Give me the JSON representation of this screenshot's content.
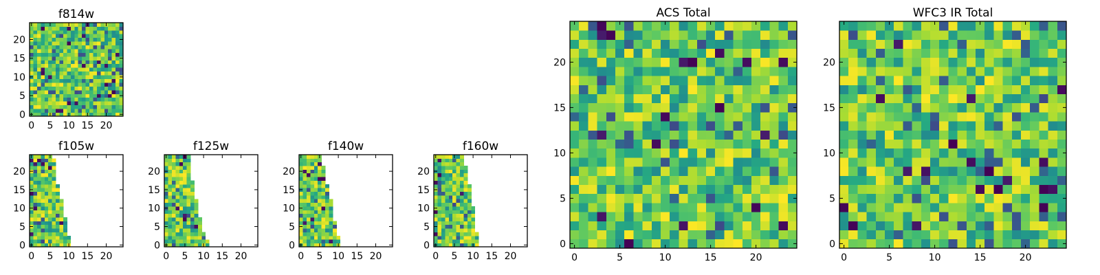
{
  "figure": {
    "colormap": "viridis",
    "colormap_stops": [
      "#440154",
      "#3b528b",
      "#21918c",
      "#5ec962",
      "#fde725"
    ]
  },
  "chart_data": [
    {
      "type": "heatmap",
      "title": "f814w",
      "grid_size": [
        25,
        25
      ],
      "value_range": [
        0,
        1
      ],
      "filled_columns_per_row": null,
      "xlim": [
        0,
        25
      ],
      "ylim": [
        0,
        25
      ],
      "x_ticks": [
        0,
        5,
        10,
        15,
        20
      ],
      "y_ticks": [
        0,
        5,
        10,
        15,
        20
      ],
      "value_distribution": "noise, mostly 0.5-1.0 (green-yellow), sparse dark pixels"
    },
    {
      "type": "heatmap",
      "title": "f105w",
      "grid_size": [
        25,
        25
      ],
      "value_range": [
        0,
        1
      ],
      "filled_columns_per_row": [
        11,
        11,
        11,
        10,
        10,
        10,
        10,
        10,
        9,
        9,
        9,
        9,
        9,
        8,
        8,
        8,
        8,
        7,
        7,
        7,
        7,
        7,
        7,
        7,
        6
      ],
      "xlim": [
        0,
        25
      ],
      "ylim": [
        0,
        25
      ],
      "x_ticks": [
        0,
        5,
        10,
        15,
        20
      ],
      "y_ticks": [
        0,
        5,
        10,
        15,
        20
      ]
    },
    {
      "type": "heatmap",
      "title": "f125w",
      "grid_size": [
        25,
        25
      ],
      "value_range": [
        0,
        1
      ],
      "filled_columns_per_row": [
        12,
        12,
        11,
        11,
        10,
        10,
        10,
        10,
        9,
        9,
        9,
        9,
        9,
        8,
        8,
        8,
        8,
        8,
        7,
        7,
        7,
        7,
        7,
        7,
        7
      ],
      "xlim": [
        0,
        25
      ],
      "ylim": [
        0,
        25
      ],
      "x_ticks": [
        0,
        5,
        10,
        15,
        20
      ],
      "y_ticks": [
        0,
        5,
        10,
        15,
        20
      ]
    },
    {
      "type": "heatmap",
      "title": "f140w",
      "grid_size": [
        25,
        25
      ],
      "value_range": [
        0,
        1
      ],
      "filled_columns_per_row": [
        11,
        11,
        11,
        10,
        10,
        10,
        10,
        9,
        9,
        9,
        9,
        9,
        9,
        8,
        8,
        8,
        8,
        7,
        7,
        7,
        7,
        7,
        6,
        6,
        6
      ],
      "xlim": [
        0,
        25
      ],
      "ylim": [
        0,
        25
      ],
      "x_ticks": [
        0,
        5,
        10,
        15,
        20
      ],
      "y_ticks": [
        0,
        5,
        10,
        15,
        20
      ]
    },
    {
      "type": "heatmap",
      "title": "f160w",
      "grid_size": [
        25,
        25
      ],
      "value_range": [
        0,
        1
      ],
      "filled_columns_per_row": [
        12,
        12,
        12,
        12,
        11,
        11,
        11,
        11,
        11,
        11,
        11,
        10,
        10,
        10,
        10,
        10,
        10,
        9,
        9,
        9,
        9,
        9,
        8,
        8,
        8
      ],
      "xlim": [
        0,
        25
      ],
      "ylim": [
        0,
        25
      ],
      "x_ticks": [
        0,
        5,
        10,
        15,
        20
      ],
      "y_ticks": [
        0,
        5,
        10,
        15,
        20
      ]
    },
    {
      "type": "heatmap",
      "title": "ACS Total",
      "grid_size": [
        25,
        25
      ],
      "value_range": [
        0,
        1
      ],
      "filled_columns_per_row": null,
      "xlim": [
        0,
        25
      ],
      "ylim": [
        0,
        25
      ],
      "x_ticks": [
        0,
        5,
        10,
        15,
        20
      ],
      "y_ticks": [
        0,
        5,
        10,
        15,
        20
      ]
    },
    {
      "type": "heatmap",
      "title": "WFC3 IR Total",
      "grid_size": [
        25,
        25
      ],
      "value_range": [
        0,
        1
      ],
      "filled_columns_per_row": null,
      "xlim": [
        0,
        25
      ],
      "ylim": [
        0,
        25
      ],
      "x_ticks": [
        0,
        5,
        10,
        15,
        20
      ],
      "y_ticks": [
        0,
        5,
        10,
        15,
        20
      ]
    }
  ]
}
